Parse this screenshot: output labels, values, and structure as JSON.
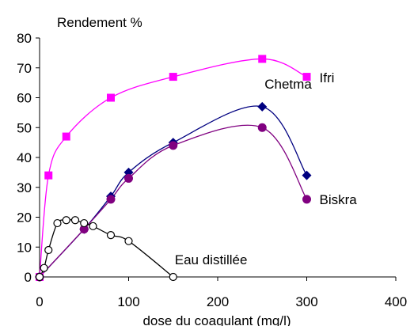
{
  "chart_data": {
    "type": "line",
    "title": "Rendement %",
    "xlabel": "dose du coagulant (mg/l)",
    "ylabel": "",
    "xlim": [
      0,
      400
    ],
    "ylim": [
      0,
      80
    ],
    "x_ticks": [
      "0",
      "100",
      "200",
      "300",
      "400"
    ],
    "y_ticks": [
      "0",
      "10",
      "20",
      "30",
      "40",
      "50",
      "60",
      "70",
      "80"
    ],
    "grid": false,
    "legend": "none",
    "series": [
      {
        "name": "Ifri",
        "color": "#ff00ff",
        "marker": "square",
        "x": [
          0,
          10,
          30,
          80,
          150,
          250,
          300
        ],
        "y": [
          0,
          34,
          47,
          60,
          67,
          73,
          67
        ]
      },
      {
        "name": "Chetma",
        "color": "#000080",
        "marker": "diamond",
        "x": [
          0,
          50,
          80,
          100,
          150,
          250,
          300
        ],
        "y": [
          0,
          16,
          27,
          35,
          45,
          57,
          34
        ]
      },
      {
        "name": "Biskra",
        "color": "#800080",
        "marker": "circle",
        "x": [
          0,
          50,
          80,
          100,
          150,
          250,
          300
        ],
        "y": [
          0,
          16,
          26,
          33,
          44,
          50,
          26
        ]
      },
      {
        "name": "Eau distillée",
        "color": "#000000",
        "marker": "open-circle",
        "x": [
          0,
          5,
          10,
          20,
          30,
          40,
          50,
          60,
          80,
          100,
          150
        ],
        "y": [
          0,
          3,
          9,
          18,
          19,
          19,
          18,
          17,
          14,
          12,
          0
        ]
      }
    ]
  }
}
